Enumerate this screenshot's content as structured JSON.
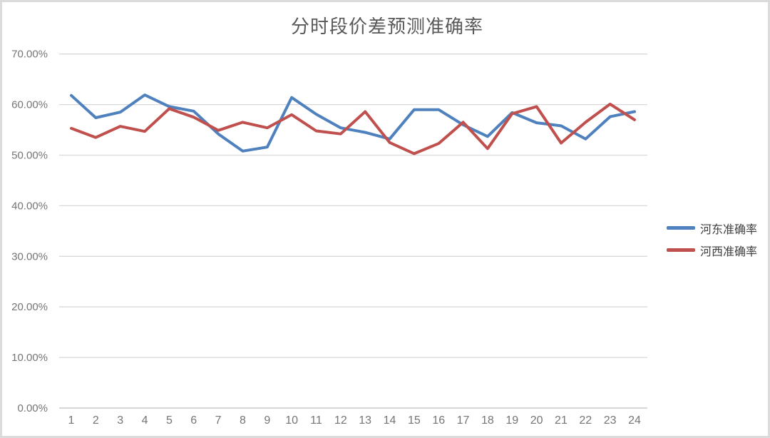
{
  "title": "分时段价差预测准确率",
  "colors": {
    "hedong": "#4E81BD",
    "hexi": "#C0504D",
    "grid": "#D9D9D9",
    "axis": "#BFBFBF",
    "tick_label": "#757575",
    "title_text": "#595959",
    "legend_text": "#3F3F3F",
    "frame_border": "#DBDBDB",
    "background": "#FFFFFF"
  },
  "chart_data": {
    "type": "line",
    "title": "分时段价差预测准确率",
    "categories": [
      1,
      2,
      3,
      4,
      5,
      6,
      7,
      8,
      9,
      10,
      11,
      12,
      13,
      14,
      15,
      16,
      17,
      18,
      19,
      20,
      21,
      22,
      23,
      24
    ],
    "xtick_labels": [
      "1",
      "2",
      "3",
      "4",
      "5",
      "6",
      "7",
      "8",
      "9",
      "10",
      "11",
      "12",
      "13",
      "14",
      "15",
      "16",
      "17",
      "18",
      "19",
      "20",
      "21",
      "22",
      "23",
      "24"
    ],
    "series": [
      {
        "name": "河东准确率",
        "color": "#4E81BD",
        "values_percent": [
          61.8,
          57.4,
          58.5,
          61.9,
          59.6,
          58.7,
          54.2,
          50.8,
          51.6,
          61.4,
          58.1,
          55.4,
          54.5,
          53.2,
          59.0,
          59.0,
          56.0,
          53.7,
          58.4,
          56.4,
          55.8,
          53.2,
          57.6,
          58.6
        ]
      },
      {
        "name": "河西准确率",
        "color": "#C0504D",
        "values_percent": [
          55.3,
          53.5,
          55.7,
          54.7,
          59.2,
          57.5,
          54.9,
          56.5,
          55.4,
          58.0,
          54.8,
          54.2,
          58.6,
          52.5,
          50.3,
          52.3,
          56.5,
          51.3,
          58.2,
          59.6,
          52.4,
          56.5,
          60.1,
          57.0
        ]
      }
    ],
    "ylim_percent": [
      0,
      70
    ],
    "ytick_step_percent": 10,
    "ytick_labels": [
      "0.00%",
      "10.00%",
      "20.00%",
      "30.00%",
      "40.00%",
      "50.00%",
      "60.00%",
      "70.00%"
    ],
    "grid": true,
    "legend_position": "right",
    "value_format": "percent"
  },
  "legend": {
    "items": [
      {
        "label": "河东准确率"
      },
      {
        "label": "河西准确率"
      }
    ]
  }
}
